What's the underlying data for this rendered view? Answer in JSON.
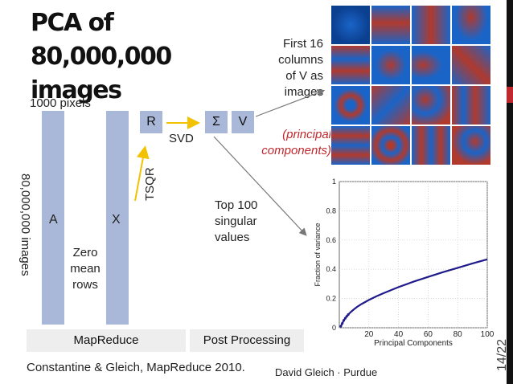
{
  "slide": {
    "title": "PCA of 80,000,000 images",
    "pixels_label": "1000 pixels",
    "rows_label": "80,000,000 images",
    "matrix_a": "A",
    "matrix_x": "X",
    "zero_mean": "Zero mean rows",
    "r_label": "R",
    "sigma_label": "Σ",
    "v_label": "V",
    "tsqr_label": "TSQR",
    "svd_label": "SVD",
    "top100": "Top 100 singular values",
    "first16": "First 16 columns of V as images",
    "principal": "(principal components)",
    "mapreduce": "MapReduce",
    "postprocessing": "Post Processing",
    "citation": "Constantine & Gleich, MapReduce 2010.",
    "author": "David Gleich · Purdue",
    "page": "14/22"
  },
  "colors": {
    "column_fill": "#a9b8d8",
    "arrow_yellow": "#f2c200",
    "red_text": "#c0282d",
    "curve": "#1f1b8a",
    "tile_blue": "#1a64c8",
    "tile_red": "#b03a2e"
  },
  "chart_data": {
    "type": "line",
    "xlabel": "Principal Components",
    "ylabel": "Fraction of variance",
    "xlim": [
      0,
      100
    ],
    "ylim": [
      0,
      1
    ],
    "xticks": [
      "20",
      "40",
      "60",
      "80",
      "100"
    ],
    "yticks": [
      "0",
      "0.2",
      "0.4",
      "0.6",
      "0.8",
      "1"
    ],
    "grid": true,
    "series": [
      {
        "x": [
          1,
          2,
          3,
          4,
          5,
          6,
          8,
          10,
          12,
          15,
          20,
          25,
          30,
          40,
          50,
          60,
          70,
          80,
          90,
          100
        ],
        "values": [
          0.01,
          0.03,
          0.05,
          0.065,
          0.078,
          0.09,
          0.11,
          0.127,
          0.143,
          0.162,
          0.19,
          0.215,
          0.237,
          0.278,
          0.315,
          0.348,
          0.38,
          0.41,
          0.44,
          0.468
        ]
      }
    ]
  }
}
